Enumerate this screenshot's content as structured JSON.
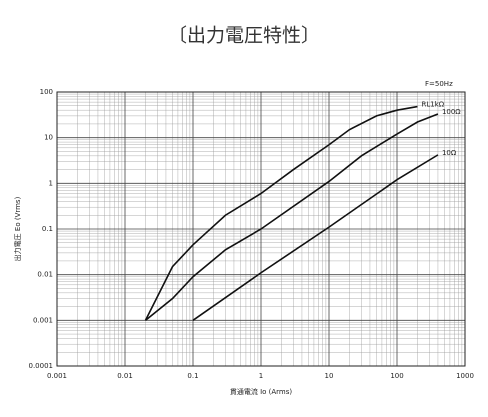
{
  "chart_data": {
    "type": "line",
    "title": "〔出力電圧特性〕",
    "annotation": "F=50Hz",
    "x_label": "貫通電流 Io (Arms)",
    "y_label": "出力電圧 Eo (Vrms)",
    "log_x": true,
    "log_y": true,
    "grid": true,
    "xlim": [
      0.001,
      1000
    ],
    "ylim": [
      0.0001,
      100
    ],
    "xticks": [
      0.001,
      0.01,
      0.1,
      1,
      10,
      100,
      1000
    ],
    "yticks": [
      0.0001,
      0.001,
      0.01,
      0.1,
      1,
      10,
      100
    ],
    "series": [
      {
        "name": "RL1kΩ",
        "color": "#111111",
        "x": [
          0.02,
          0.05,
          0.1,
          0.3,
          1,
          3,
          10,
          20,
          50,
          100,
          200
        ],
        "values": [
          0.001,
          0.015,
          0.045,
          0.2,
          0.6,
          2,
          7,
          15,
          30,
          40,
          48
        ]
      },
      {
        "name": "100Ω",
        "color": "#111111",
        "x": [
          0.02,
          0.05,
          0.1,
          0.3,
          1,
          10,
          30,
          100,
          200,
          400
        ],
        "values": [
          0.001,
          0.003,
          0.009,
          0.035,
          0.1,
          1.1,
          4,
          12,
          22,
          33
        ]
      },
      {
        "name": "10Ω",
        "color": "#111111",
        "x": [
          0.1,
          1,
          10,
          100,
          400
        ],
        "values": [
          0.001,
          0.011,
          0.11,
          1.2,
          4.2
        ]
      }
    ]
  }
}
